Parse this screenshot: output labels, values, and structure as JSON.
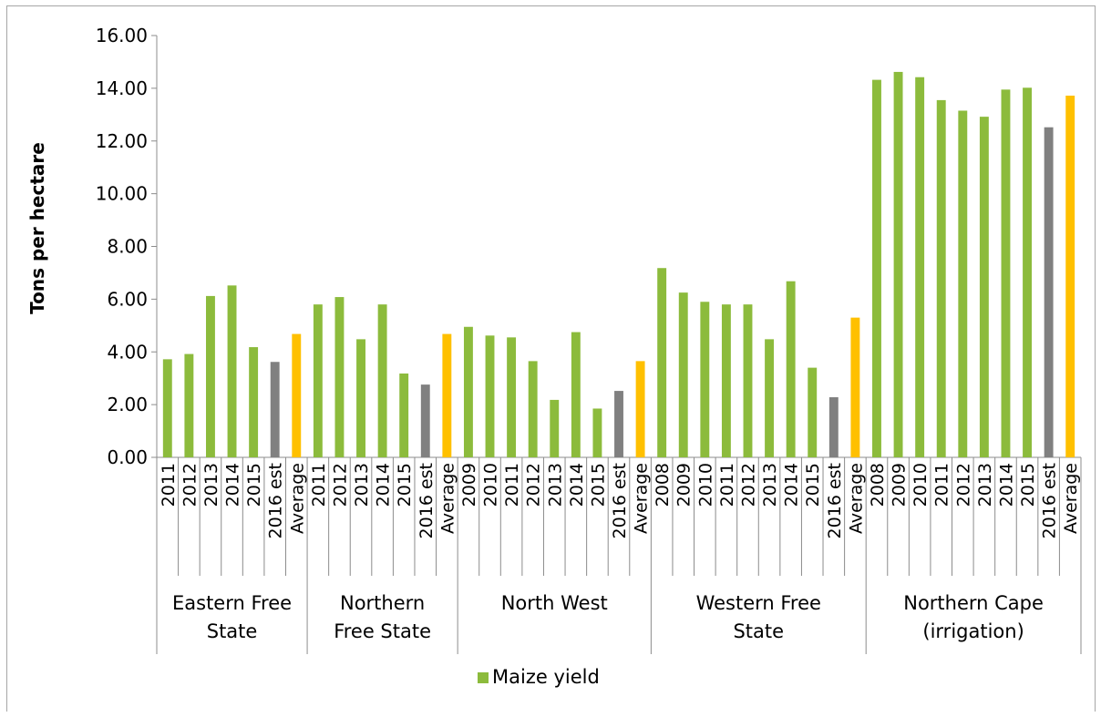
{
  "chart_data": {
    "type": "bar",
    "title": "",
    "xlabel": "",
    "ylabel": "Tons per hectare",
    "ylim": [
      0,
      16
    ],
    "yticks": [
      "0.00",
      "2.00",
      "4.00",
      "6.00",
      "8.00",
      "10.00",
      "12.00",
      "14.00",
      "16.00"
    ],
    "grid": false,
    "legend": {
      "position": "bottom",
      "entries": [
        "Maize yield"
      ]
    },
    "colors": {
      "actual": "#8cbb3c",
      "estimate": "#808080",
      "average": "#ffc000"
    },
    "groups": [
      {
        "name_lines": [
          "Eastern Free",
          "State"
        ],
        "categories": [
          "2011",
          "2012",
          "2013",
          "2014",
          "2015",
          "2016 est",
          "Average"
        ],
        "values": [
          3.72,
          3.92,
          6.12,
          6.52,
          4.18,
          3.62,
          4.68
        ]
      },
      {
        "name_lines": [
          "Northern",
          "Free State"
        ],
        "categories": [
          "2011",
          "2012",
          "2013",
          "2014",
          "2015",
          "2016 est",
          "Average"
        ],
        "values": [
          5.8,
          6.08,
          4.48,
          5.8,
          3.18,
          2.76,
          4.68
        ]
      },
      {
        "name_lines": [
          "North West"
        ],
        "categories": [
          "2009",
          "2010",
          "2011",
          "2012",
          "2013",
          "2014",
          "2015",
          "2016 est",
          "Average"
        ],
        "values": [
          4.95,
          4.62,
          4.55,
          3.65,
          2.18,
          4.75,
          1.85,
          2.52,
          3.65
        ]
      },
      {
        "name_lines": [
          "Western Free",
          "State"
        ],
        "categories": [
          "2008",
          "2009",
          "2010",
          "2011",
          "2012",
          "2013",
          "2014",
          "2015",
          "2016 est",
          "Average"
        ],
        "values": [
          7.18,
          6.25,
          5.9,
          5.8,
          5.8,
          4.48,
          6.68,
          3.4,
          2.28,
          5.3
        ]
      },
      {
        "name_lines": [
          "Northern Cape",
          "(irrigation)"
        ],
        "categories": [
          "2008",
          "2009",
          "2010",
          "2011",
          "2012",
          "2013",
          "2014",
          "2015",
          "2016 est",
          "Average"
        ],
        "values": [
          14.32,
          14.62,
          14.42,
          13.55,
          13.15,
          12.92,
          13.95,
          14.02,
          12.52,
          13.72
        ]
      }
    ]
  }
}
